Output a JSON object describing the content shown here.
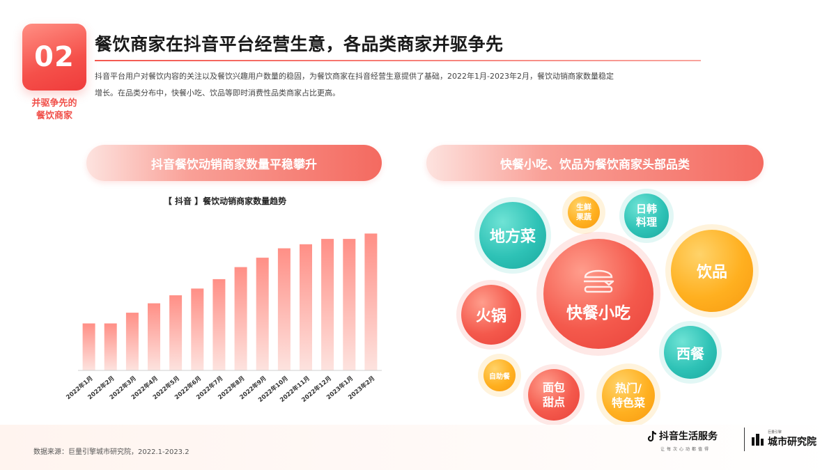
{
  "section": {
    "number": "02",
    "tag_line1": "并驱争先的",
    "tag_line2": "餐饮商家"
  },
  "title": "餐饮商家在抖音平台经营生意，各品类商家并驱争先",
  "intro_line1": "抖音平台用户对餐饮内容的关注以及餐饮兴趣用户数量的稳固，为餐饮商家在抖音经营生意提供了基础，2022年1月-2023年2月，餐饮动销商家数量稳定",
  "intro_line2": "增长。在品类分布中，快餐小吃、饮品等即时消费性品类商家占比更高。",
  "left_pill": "抖音餐饮动销商家数量平稳攀升",
  "right_pill": "快餐小吃、饮品为餐饮商家头部品类",
  "chart_data": {
    "type": "bar",
    "title": "【 抖音 】餐饮动销商家数量趋势",
    "categories": [
      "2022年1月",
      "2022年2月",
      "2022年3月",
      "2022年4月",
      "2022年5月",
      "2022年6月",
      "2022年7月",
      "2022年8月",
      "2022年9月",
      "2022年10月",
      "2022年11月",
      "2022年12月",
      "2023年1月",
      "2023年2月"
    ],
    "values": [
      35,
      35,
      43,
      50,
      56,
      61,
      68,
      77,
      84,
      91,
      94,
      98,
      98,
      102
    ],
    "ylim": [
      0,
      110
    ],
    "grid": false,
    "bar_gradient": [
      "#ff8f86",
      "#fde3df"
    ]
  },
  "bubbles": {
    "fast_food": "快餐小吃",
    "drinks": "饮品",
    "local": "地方菜",
    "hotpot": "火锅",
    "western": "西餐",
    "bakery_1": "面包",
    "bakery_2": "甜点",
    "special_1": "热门/",
    "special_2": "特色菜",
    "buffet": "自助餐",
    "fresh_1": "生鲜",
    "fresh_2": "果蔬",
    "jk_1": "日韩",
    "jk_2": "料理"
  },
  "icons": {
    "fast_food": "burger-icon",
    "douyin_logo": "douyin-note-icon",
    "city_logo": "city-buildings-icon"
  },
  "footer": {
    "source": "数据来源：巨量引擎城市研究院，2022.1-2023.2",
    "brand1": "抖音生活服务",
    "brand1_sub": "让每次心动都值得",
    "brand2_small": "巨量引擎",
    "brand2": "城市研究院"
  }
}
